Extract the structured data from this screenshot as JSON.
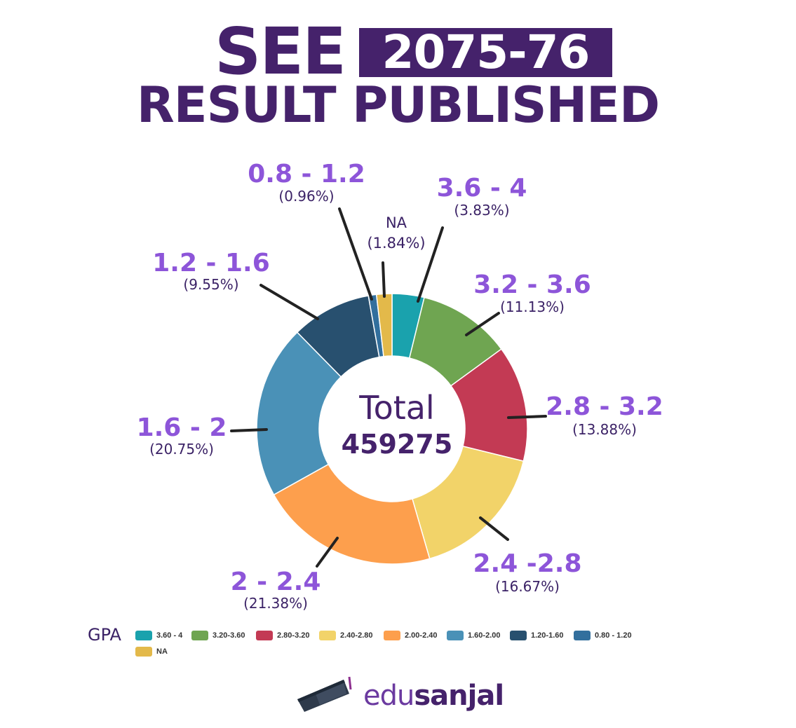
{
  "header": {
    "title_word": "SEE",
    "year": "2075-76",
    "subtitle": "RESULT PUBLISHED"
  },
  "center": {
    "label": "Total",
    "value": "459275"
  },
  "chart_data": {
    "type": "pie",
    "title": "SEE 2075-76 RESULT PUBLISHED",
    "donut": true,
    "slices": [
      {
        "label": "3.6 - 4",
        "percent_label": "(3.83%)",
        "value": 3.83,
        "color": "#1aa2ad",
        "legend": "3.60 - 4"
      },
      {
        "label": "3.2 - 3.6",
        "percent_label": "(11.13%)",
        "value": 11.13,
        "color": "#6fa551",
        "legend": "3.20-3.60"
      },
      {
        "label": "2.8 - 3.2",
        "percent_label": "(13.88%)",
        "value": 13.88,
        "color": "#c33a54",
        "legend": "2.80-3.20"
      },
      {
        "label": "2.4 -2.8",
        "percent_label": "(16.67%)",
        "value": 16.67,
        "color": "#f2d369",
        "legend": "2.40-2.80"
      },
      {
        "label": "2 - 2.4",
        "percent_label": "(21.38%)",
        "value": 21.38,
        "color": "#fd9f4d",
        "legend": "2.00-2.40"
      },
      {
        "label": "1.6 - 2",
        "percent_label": "(20.75%)",
        "value": 20.75,
        "color": "#4a91b7",
        "legend": "1.60-2.00"
      },
      {
        "label": "1.2 - 1.6",
        "percent_label": "(9.55%)",
        "value": 9.55,
        "color": "#28506f",
        "legend": "1.20-1.60"
      },
      {
        "label": "0.8 - 1.2",
        "percent_label": "(0.96%)",
        "value": 0.96,
        "color": "#326f9d",
        "legend": "0.80 - 1.20"
      },
      {
        "label": "NA",
        "percent_label": "(1.84%)",
        "value": 1.84,
        "color": "#e3b94a",
        "legend": "NA"
      }
    ],
    "legend": {
      "title": "GPA",
      "placement": "bottom"
    }
  },
  "brand": {
    "name_part1": "edu",
    "name_part2": "sanjal"
  }
}
